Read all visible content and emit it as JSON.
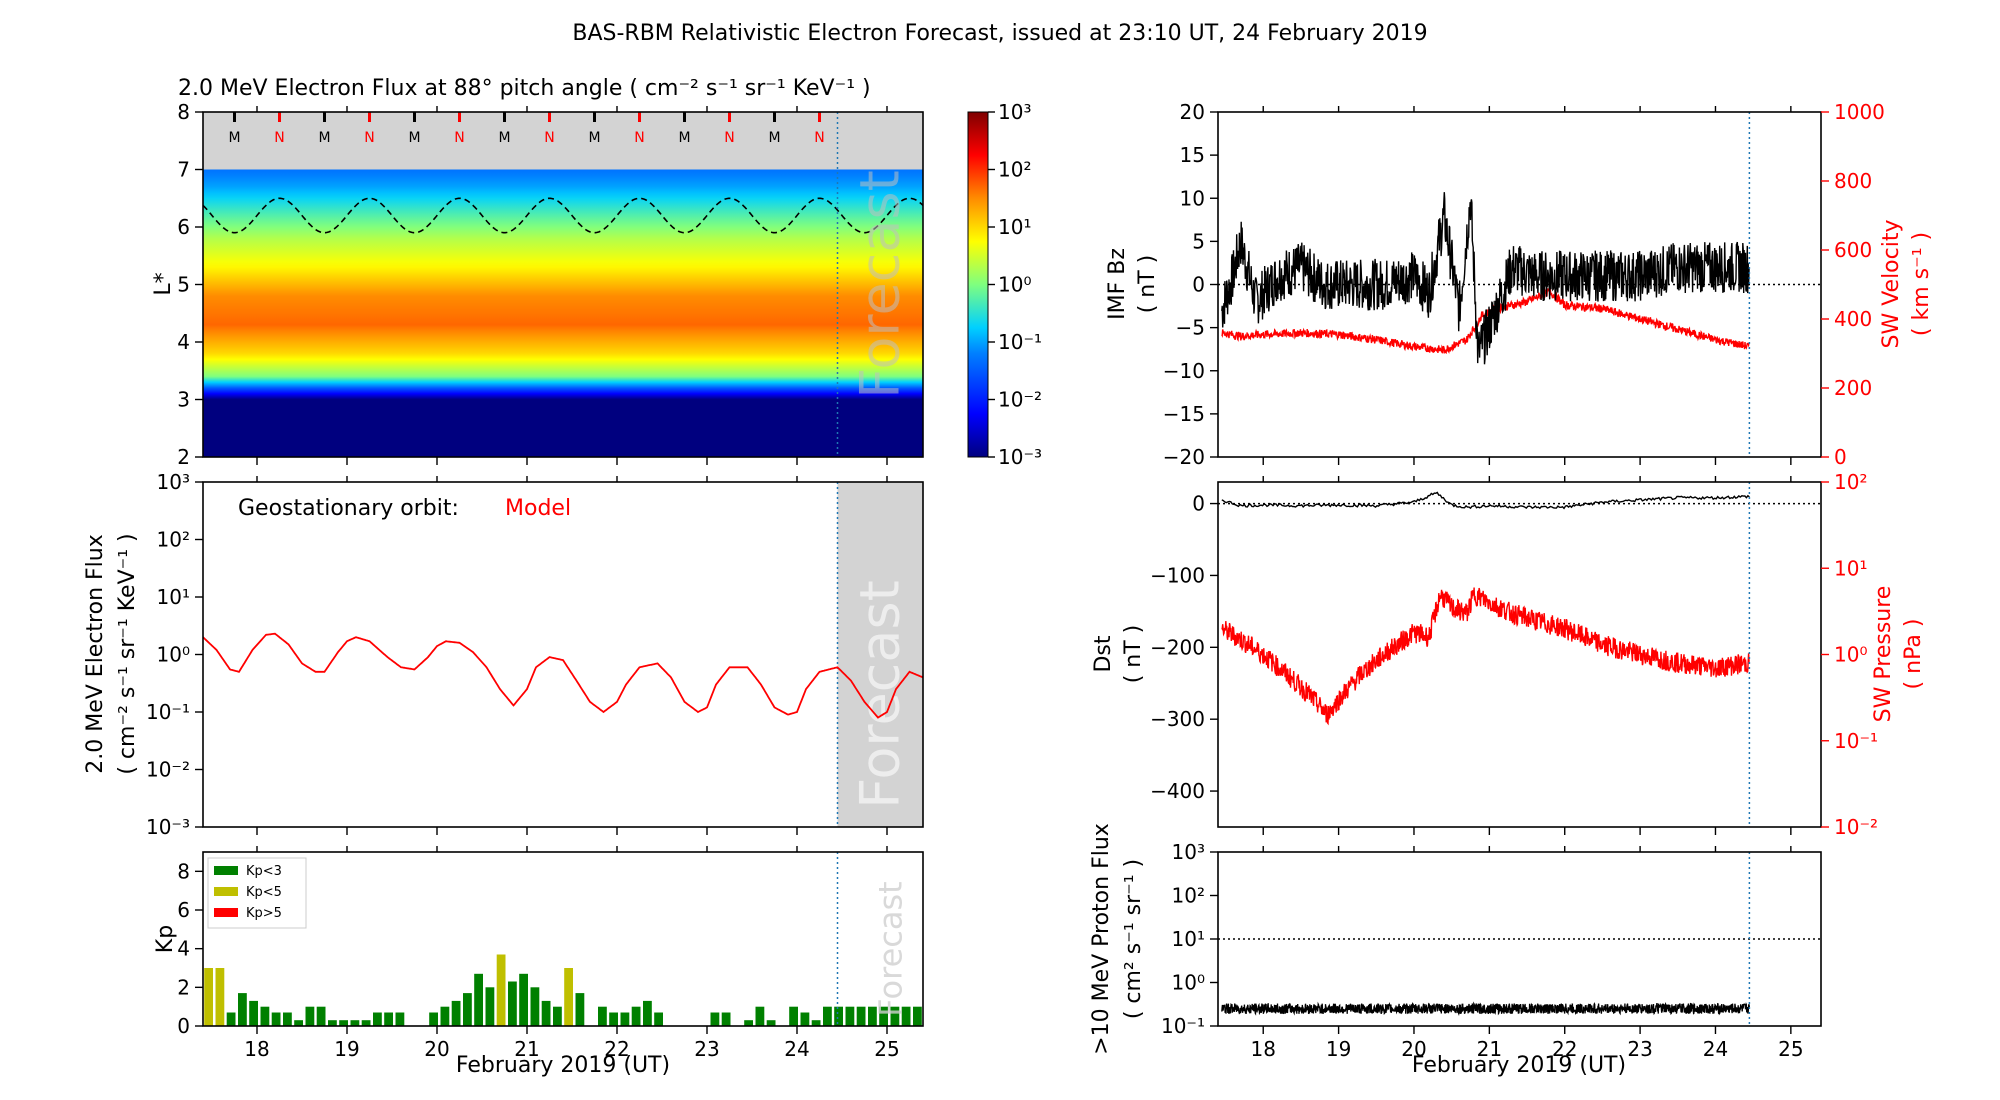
{
  "figure_title": "BAS-RBM Relativistic Electron Forecast, issued at 23:10 UT, 24 February 2019",
  "colors": {
    "red": "#ff0000",
    "green": "#008000",
    "olive": "#bfbf00",
    "forecast_shade": "#d3d3d3",
    "forecast_line": "#1f77b4"
  },
  "chart_data": [
    {
      "id": "flux_map",
      "type": "heatmap",
      "title": "2.0 MeV Electron Flux at 88° pitch angle ( cm⁻² s⁻¹ sr⁻¹ KeV⁻¹ )",
      "ylabel": "L*",
      "ylim": [
        2,
        8
      ],
      "yticks": [
        "2",
        "3",
        "4",
        "5",
        "6",
        "7",
        "8"
      ],
      "xlim": [
        17.4,
        25.4
      ],
      "colorbar": {
        "scale": "log",
        "range": [
          0.001,
          1000
        ],
        "ticks": [
          "10⁻³",
          "10⁻²",
          "10⁻¹",
          "10⁰",
          "10¹",
          "10²",
          "10³"
        ]
      },
      "flux_profile": [
        {
          "L": 2.0,
          "log_flux": -3.0
        },
        {
          "L": 3.0,
          "log_flux": -3.0
        },
        {
          "L": 3.2,
          "log_flux": -1.5
        },
        {
          "L": 3.4,
          "log_flux": 0.0
        },
        {
          "L": 3.8,
          "log_flux": 1.0
        },
        {
          "L": 4.3,
          "log_flux": 1.7
        },
        {
          "L": 4.8,
          "log_flux": 1.5
        },
        {
          "L": 5.3,
          "log_flux": 0.8
        },
        {
          "L": 5.8,
          "log_flux": 0.3
        },
        {
          "L": 6.3,
          "log_flux": -0.4
        },
        {
          "L": 6.7,
          "log_flux": -1.0
        },
        {
          "L": 7.0,
          "log_flux": -1.3
        }
      ],
      "mn_markers": [
        "M",
        "N",
        "M",
        "N",
        "M",
        "N",
        "M",
        "N",
        "M",
        "N",
        "M",
        "N",
        "M",
        "N"
      ],
      "mn_times": [
        17.75,
        18.25,
        18.75,
        19.25,
        19.75,
        20.25,
        20.75,
        21.25,
        21.75,
        22.25,
        22.75,
        23.25,
        23.75,
        24.25
      ],
      "geo_L_range": [
        5.9,
        6.5
      ],
      "forecast_start": 24.45,
      "forecast_label": "Forecast"
    },
    {
      "id": "geo_flux",
      "type": "line",
      "ylabel": [
        "2.0 MeV Electron Flux",
        "( cm⁻² s⁻¹ sr⁻¹ KeV⁻¹ )"
      ],
      "yscale": "log",
      "ylim": [
        0.001,
        1000
      ],
      "yticks": [
        "10⁻³",
        "10⁻²",
        "10⁻¹",
        "10⁰",
        "10¹",
        "10²",
        "10³"
      ],
      "xlim": [
        17.4,
        25.4
      ],
      "annotation": {
        "text": "Geostationary orbit:",
        "model": "Model"
      },
      "series": [
        {
          "color": "#ff0000",
          "x": [
            17.4,
            17.55,
            17.7,
            17.8,
            17.95,
            18.1,
            18.2,
            18.35,
            18.5,
            18.65,
            18.75,
            18.9,
            19.0,
            19.1,
            19.25,
            19.45,
            19.6,
            19.75,
            19.9,
            20.0,
            20.1,
            20.25,
            20.4,
            20.55,
            20.7,
            20.85,
            21.0,
            21.1,
            21.25,
            21.4,
            21.55,
            21.7,
            21.85,
            22.0,
            22.1,
            22.25,
            22.45,
            22.6,
            22.75,
            22.9,
            23.0,
            23.1,
            23.25,
            23.45,
            23.6,
            23.75,
            23.9,
            24.0,
            24.1,
            24.25,
            24.45,
            24.6,
            24.75,
            24.9,
            25.0,
            25.1,
            25.25,
            25.4
          ],
          "y": [
            2.0,
            1.2,
            0.55,
            0.5,
            1.2,
            2.2,
            2.3,
            1.5,
            0.7,
            0.5,
            0.5,
            1.1,
            1.7,
            2.0,
            1.7,
            0.9,
            0.6,
            0.55,
            0.9,
            1.4,
            1.7,
            1.6,
            1.1,
            0.6,
            0.25,
            0.13,
            0.25,
            0.6,
            0.9,
            0.8,
            0.35,
            0.15,
            0.1,
            0.15,
            0.3,
            0.6,
            0.7,
            0.4,
            0.15,
            0.1,
            0.12,
            0.3,
            0.6,
            0.6,
            0.3,
            0.12,
            0.09,
            0.1,
            0.25,
            0.5,
            0.6,
            0.35,
            0.15,
            0.08,
            0.1,
            0.25,
            0.5,
            0.4
          ]
        }
      ],
      "forecast_start": 24.45,
      "forecast_label": "Forecast"
    },
    {
      "id": "kp",
      "type": "bar",
      "ylabel": "Kp",
      "ylim": [
        0,
        9
      ],
      "yticks": [
        "0",
        "2",
        "4",
        "6",
        "8"
      ],
      "xlim": [
        17.4,
        25.4
      ],
      "xticks": [
        "18",
        "19",
        "20",
        "21",
        "22",
        "23",
        "24",
        "25"
      ],
      "xlabel": "February 2019 (UT)",
      "legend": [
        {
          "label": "Kp<3",
          "color": "#008000"
        },
        {
          "label": "Kp<5",
          "color": "#bfbf00"
        },
        {
          "label": "Kp>5",
          "color": "#ff0000"
        }
      ],
      "values": [
        3.0,
        3.0,
        0.7,
        1.7,
        1.3,
        1.0,
        0.7,
        0.7,
        0.3,
        1.0,
        1.0,
        0.3,
        0.3,
        0.3,
        0.3,
        0.7,
        0.7,
        0.7,
        0.0,
        0.0,
        0.7,
        1.0,
        1.3,
        1.7,
        2.7,
        2.0,
        3.7,
        2.3,
        2.7,
        2.0,
        1.3,
        1.0,
        3.0,
        1.7,
        0.0,
        1.0,
        0.7,
        0.7,
        1.0,
        1.3,
        0.7,
        0.0,
        0.0,
        0.0,
        0.0,
        0.7,
        0.7,
        0.0,
        0.3,
        1.0,
        0.3,
        0.0,
        1.0,
        0.7,
        0.3,
        1.0,
        1.0,
        1.0,
        1.0,
        1.0,
        1.0,
        1.0,
        1.0,
        1.0
      ],
      "forecast_start": 24.45,
      "forecast_label": "Forecast"
    },
    {
      "id": "imf_sw",
      "type": "line",
      "ylabel": [
        "IMF Bz",
        "( nT )"
      ],
      "ylim": [
        -20,
        20
      ],
      "yticks": [
        "−20",
        "−15",
        "−10",
        "−5",
        "0",
        "5",
        "10",
        "15",
        "20"
      ],
      "y2label": [
        "SW Velocity",
        "( km s⁻¹ )"
      ],
      "y2lim": [
        0,
        1000
      ],
      "y2ticks": [
        "0",
        "200",
        "400",
        "600",
        "800",
        "1000"
      ],
      "xlim": [
        17.4,
        25.4
      ],
      "series": [
        {
          "name": "IMF Bz",
          "color": "#000000",
          "x": [
            17.45,
            17.6,
            17.7,
            17.9,
            18.2,
            18.5,
            18.8,
            19.2,
            19.6,
            20.0,
            20.2,
            20.4,
            20.6,
            20.75,
            20.85,
            21.0,
            21.3,
            21.6,
            22.0,
            22.5,
            23.0,
            23.5,
            24.0,
            24.3,
            24.45
          ],
          "y": [
            -3,
            1,
            5,
            -2,
            1,
            2,
            0,
            0,
            0,
            1,
            -1,
            8,
            -3,
            10,
            -8,
            -5,
            2,
            1,
            1,
            1,
            1,
            2,
            2,
            2,
            2
          ],
          "noise": 3
        },
        {
          "name": "SW Velocity",
          "color": "#ff0000",
          "x": [
            17.45,
            17.7,
            18.0,
            18.5,
            19.0,
            19.5,
            20.0,
            20.4,
            20.7,
            20.9,
            21.1,
            21.5,
            21.8,
            22.0,
            22.5,
            23.0,
            23.5,
            24.0,
            24.45
          ],
          "y": [
            360,
            350,
            355,
            360,
            355,
            340,
            320,
            310,
            340,
            410,
            430,
            450,
            480,
            440,
            430,
            400,
            370,
            340,
            320
          ],
          "noise": 12
        }
      ],
      "forecast_start": 24.45
    },
    {
      "id": "dst_pressure",
      "type": "line",
      "ylabel": [
        "Dst",
        "( nT )"
      ],
      "ylim": [
        -450,
        30
      ],
      "yticks": [
        "−400",
        "−300",
        "−200",
        "−100",
        "0"
      ],
      "y2label": [
        "SW Pressure",
        "( nPa )"
      ],
      "y2scale": "log",
      "y2lim": [
        0.01,
        100
      ],
      "y2ticks": [
        "10⁻²",
        "10⁻¹",
        "10⁰",
        "10¹",
        "10²"
      ],
      "xlim": [
        17.4,
        25.4
      ],
      "series": [
        {
          "name": "Dst",
          "color": "#000000",
          "x": [
            17.45,
            17.7,
            18.0,
            18.5,
            19.0,
            19.5,
            20.0,
            20.3,
            20.5,
            20.7,
            21.0,
            21.5,
            22.0,
            22.5,
            23.0,
            23.5,
            24.0,
            24.45
          ],
          "y": [
            5,
            -3,
            -2,
            -3,
            -2,
            -3,
            2,
            15,
            -2,
            -5,
            -3,
            -5,
            -5,
            2,
            5,
            8,
            8,
            10
          ],
          "noise": 2
        },
        {
          "name": "SW Pressure",
          "color": "#ff0000",
          "x": [
            17.45,
            17.7,
            18.0,
            18.3,
            18.6,
            18.85,
            19.0,
            19.3,
            19.6,
            20.0,
            20.2,
            20.35,
            20.5,
            20.7,
            20.8,
            21.0,
            21.3,
            21.6,
            22.0,
            22.5,
            23.0,
            23.5,
            24.0,
            24.45
          ],
          "y": [
            2.0,
            1.5,
            1.0,
            0.6,
            0.35,
            0.2,
            0.3,
            0.6,
            1.0,
            1.8,
            1.6,
            5.0,
            3.5,
            3.0,
            5.0,
            4.0,
            3.0,
            2.5,
            2.0,
            1.3,
            1.0,
            0.8,
            0.7,
            0.8
          ],
          "noise": 0.12
        }
      ],
      "forecast_start": 24.45
    },
    {
      "id": "proton_flux",
      "type": "line",
      "ylabel": [
        ">10 MeV Proton Flux",
        "( cm² s⁻¹ sr⁻¹ )"
      ],
      "yscale": "log",
      "ylim": [
        0.1,
        1000
      ],
      "yticks": [
        "10⁻¹",
        "10⁰",
        "10¹",
        "10²",
        "10³"
      ],
      "threshold": 10,
      "xlim": [
        17.4,
        25.4
      ],
      "xticks": [
        "18",
        "19",
        "20",
        "21",
        "22",
        "23",
        "24",
        "25"
      ],
      "xlabel": "February 2019 (UT)",
      "series": [
        {
          "name": "Proton flux",
          "color": "#000000",
          "x": [
            17.45,
            24.45
          ],
          "y": [
            0.25,
            0.25
          ],
          "noise": 0.12
        }
      ],
      "forecast_start": 24.45
    }
  ]
}
